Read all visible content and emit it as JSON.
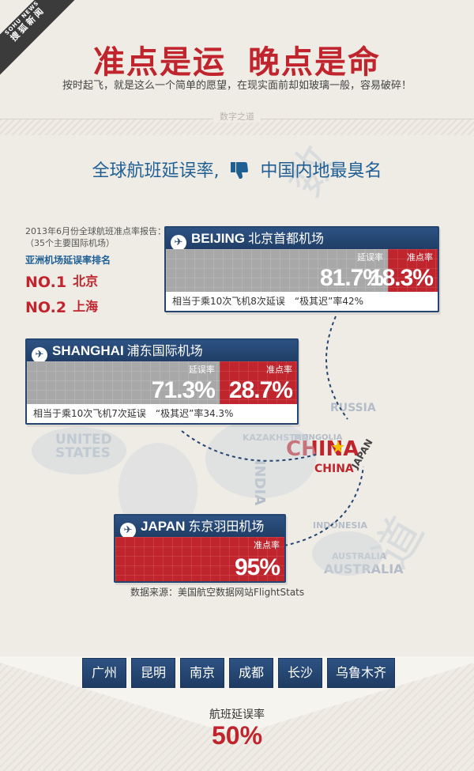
{
  "ribbon": {
    "en": "SOHU NEWS",
    "cn": "搜狐新闻"
  },
  "header": {
    "title_part1": "准点是运",
    "title_part2": "晚点是命",
    "subtitle": "按时起飞，就是这么一个简单的愿望，在现实面前却如玻璃一般，容易破碎！",
    "brand": "数字之道"
  },
  "section_title_before": "全球航班延误率,",
  "section_title_after": "中国内地最臭名",
  "report": {
    "note": "2013年6月份全球航班准点率报告：（35个主要国际机场）",
    "rank_title": "亚洲机场延误率排名",
    "ranks": [
      {
        "label": "NO.1",
        "city": "北京"
      },
      {
        "label": "NO.2",
        "city": "上海"
      }
    ]
  },
  "map_labels": {
    "china": "CHINA",
    "china_small": "CHINA",
    "japan": "JAPAN",
    "russia": "RUSSIA",
    "kazakhstan": "KAZAKHSTAN",
    "mongolia": "MONGOLIA",
    "united_states": "UNITED STATES",
    "indonesia": "INDONESIA",
    "australia": "AUSTRALIA",
    "australia2": "AUSTRALIA",
    "india": "INDIA"
  },
  "airports": [
    {
      "en": "BEIJING",
      "cn": "北京首都机场",
      "delay_label": "延误率",
      "delay_value": "81.7%",
      "delay_pct": 81.7,
      "ontime_label": "准点率",
      "ontime_value": "18.3%",
      "note": "相当于乘10次飞机8次延误　“极其迟”率42%"
    },
    {
      "en": "SHANGHAI",
      "cn": "浦东国际机场",
      "delay_label": "延误率",
      "delay_value": "71.3%",
      "delay_pct": 71.3,
      "ontime_label": "准点率",
      "ontime_value": "28.7%",
      "note": "相当于乘10次飞机7次延误　“极其迟”率34.3%"
    },
    {
      "en": "JAPAN",
      "cn": "东京羽田机场",
      "ontime_label": "准点率",
      "ontime_value": "95%"
    }
  ],
  "source": "数据来源：美国航空数据网站FlightStats",
  "bottom": {
    "cities": [
      "广州",
      "昆明",
      "南京",
      "成都",
      "长沙",
      "乌鲁木齐"
    ],
    "rate_label": "航班延误率",
    "rate_value": "50%"
  },
  "colors": {
    "red": "#c0242c",
    "navy": "#24456f",
    "blue": "#1f5f94",
    "gray": "#a8a8a8"
  },
  "icons": {
    "ribbon": "sohu-news-ribbon",
    "thumb": "thumbs-down-icon",
    "plane": "airplane-icon"
  }
}
